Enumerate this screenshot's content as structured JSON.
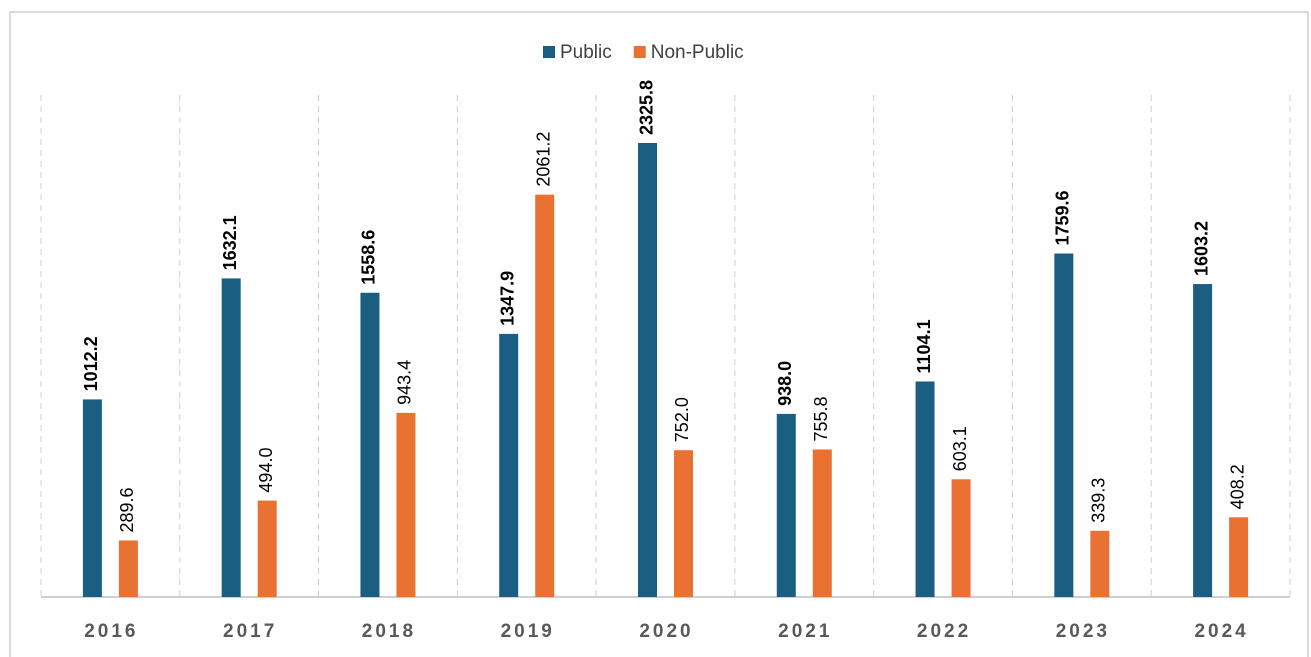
{
  "chart_data": {
    "type": "bar",
    "categories": [
      "2016",
      "2017",
      "2018",
      "2019",
      "2020",
      "2021",
      "2022",
      "2023",
      "2024"
    ],
    "series": [
      {
        "name": "Public",
        "color": "#1a5e82",
        "values": [
          1012.2,
          1632.1,
          1558.6,
          1347.9,
          2325.8,
          938.0,
          1104.1,
          1759.6,
          1603.2
        ],
        "value_labels": [
          "1012.2",
          "1632.1",
          "1558.6",
          "1347.9",
          "2325.8",
          "938.0",
          "1104.1",
          "1759.6",
          "1603.2"
        ]
      },
      {
        "name": "Non-Public",
        "color": "#e97132",
        "values": [
          289.6,
          494.0,
          943.4,
          2061.2,
          752.0,
          755.8,
          603.1,
          339.3,
          408.2
        ],
        "value_labels": [
          "289.6",
          "494.0",
          "943.4",
          "2061.2",
          "752.0",
          "755.8",
          "603.1",
          "339.3",
          "408.2"
        ]
      }
    ],
    "legend": "top",
    "grid": true
  }
}
